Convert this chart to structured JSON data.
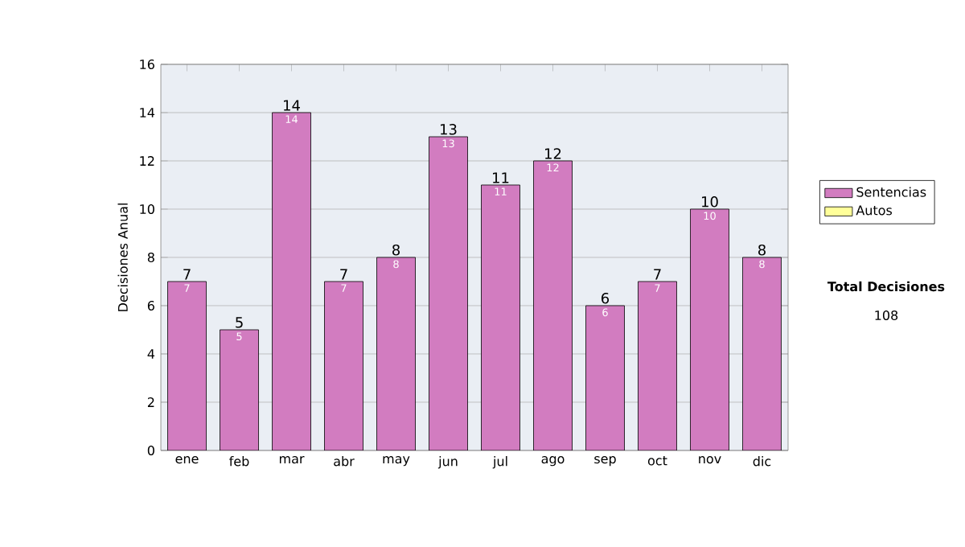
{
  "chart_data": {
    "type": "bar",
    "stacked": true,
    "ylabel": "Decisiones Anual",
    "categories": [
      "ene",
      "feb",
      "mar",
      "abr",
      "may",
      "jun",
      "jul",
      "ago",
      "sep",
      "oct",
      "nov",
      "dic"
    ],
    "series": [
      {
        "name": "Sentencias",
        "color": "#d27cc0",
        "values": [
          7,
          5,
          14,
          7,
          8,
          13,
          11,
          12,
          6,
          7,
          10,
          8
        ],
        "value_labels": [
          "7",
          "5",
          "14",
          "7",
          "8",
          "13",
          "11",
          "12",
          "6",
          "7",
          "10",
          "8"
        ]
      },
      {
        "name": "Autos",
        "color": "#ffff99",
        "values": [
          0,
          0,
          0,
          0,
          0,
          0,
          0,
          0,
          0,
          0,
          0,
          0
        ]
      }
    ],
    "totals": [
      "7",
      "5",
      "14",
      "7",
      "8",
      "13",
      "11",
      "12",
      "6",
      "7",
      "10",
      "8"
    ],
    "ylim": [
      0,
      16
    ],
    "yticks": [
      0,
      2,
      4,
      6,
      8,
      10,
      12,
      14,
      16
    ],
    "grid": "y",
    "legend": "right",
    "annotations": [
      "Total Decisiones",
      "108"
    ]
  }
}
